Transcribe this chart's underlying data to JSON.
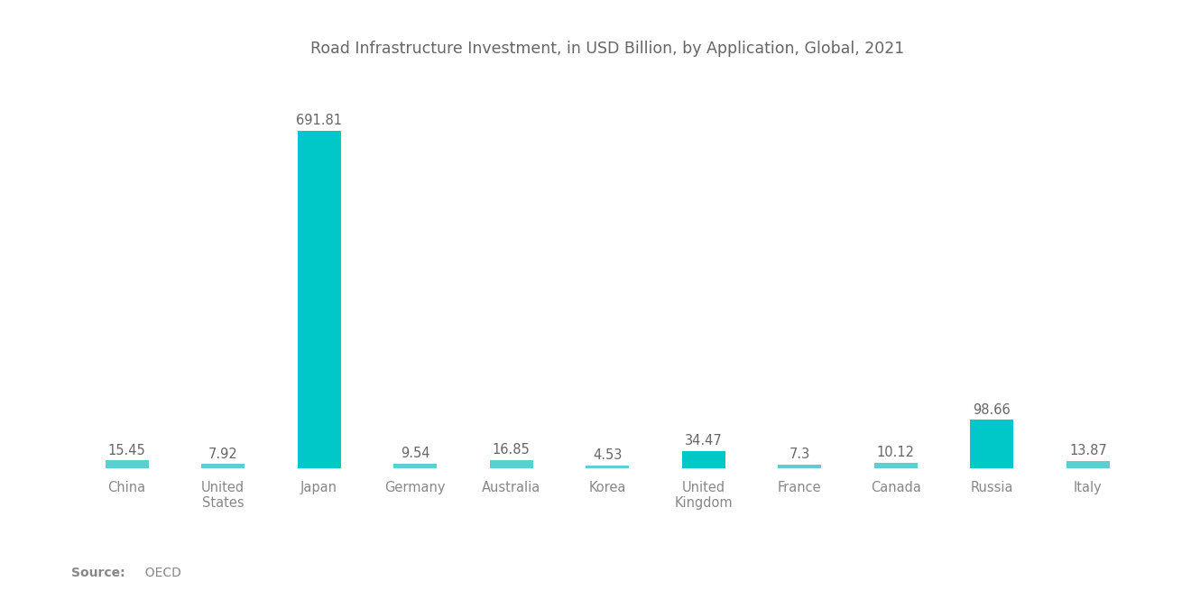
{
  "title": "Road Infrastructure Investment, in USD Billion, by Application, Global, 2021",
  "categories": [
    "China",
    "United\nStates",
    "Japan",
    "Germany",
    "Australia",
    "Korea",
    "United\nKingdom",
    "France",
    "Canada",
    "Russia",
    "Italy"
  ],
  "values": [
    15.45,
    7.92,
    691.81,
    9.54,
    16.85,
    4.53,
    34.47,
    7.3,
    10.12,
    98.66,
    13.87
  ],
  "bar_color_main": "#00C8C8",
  "bar_color_light": "#5ECFCF",
  "background_color": "#ffffff",
  "title_color": "#666666",
  "label_color": "#888888",
  "value_color": "#666666",
  "source_bold": "Source:",
  "source_regular": "  OECD"
}
